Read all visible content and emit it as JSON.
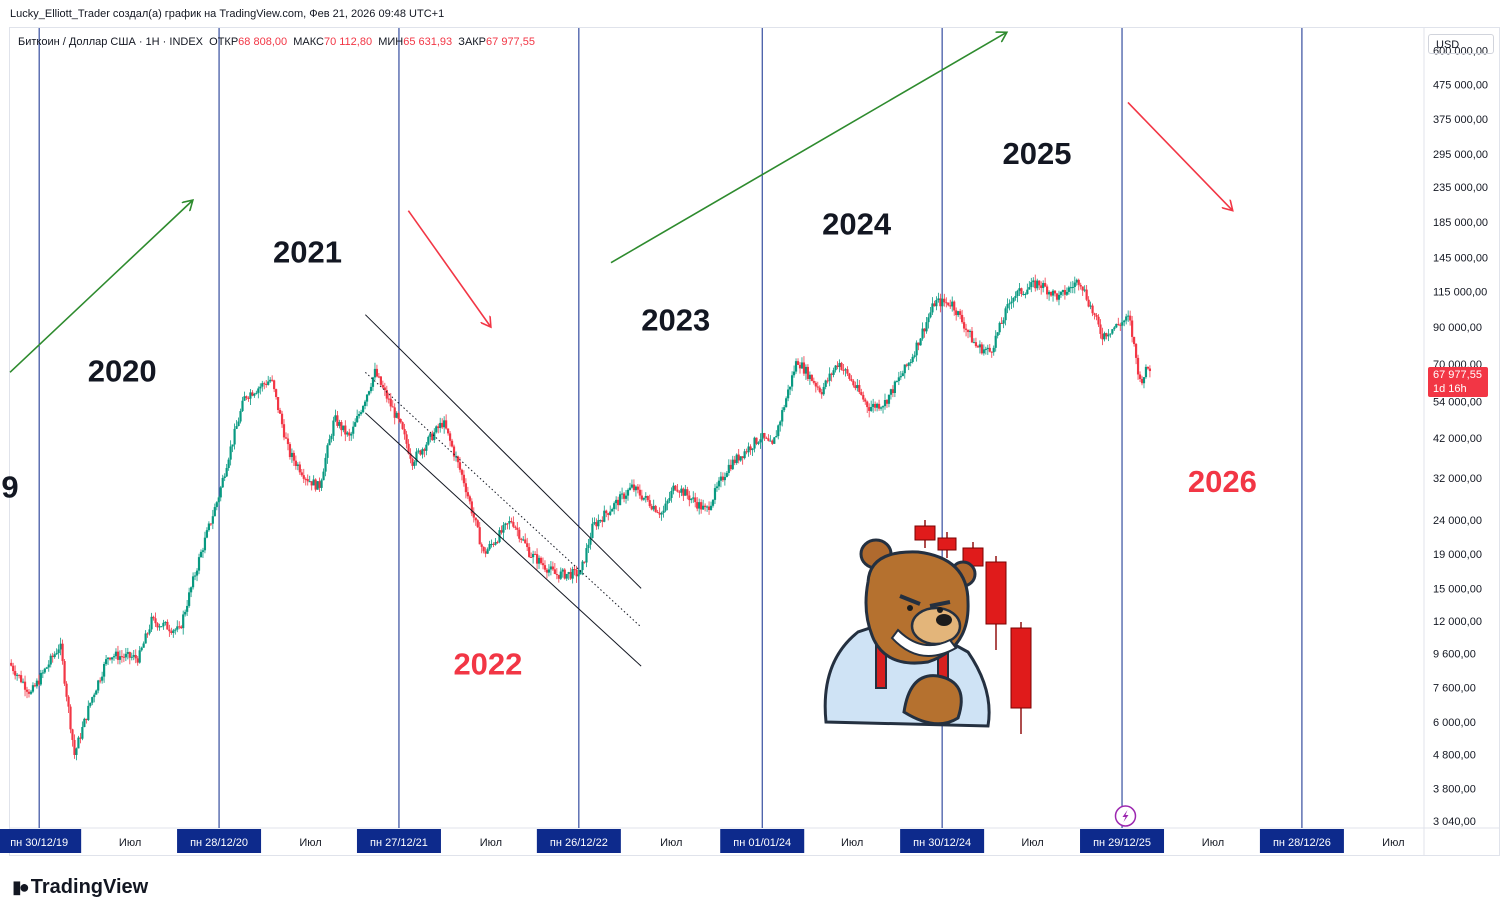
{
  "header": {
    "attribution": "Lucky_Elliott_Trader создал(а) график на TradingView.com, Фев 21, 2026 09:48 UTC+1"
  },
  "legend": {
    "symbol": "Биткоин / Доллар США · 1Н · INDEX",
    "open_label": "ОТКР",
    "open_value": "68 808,00",
    "high_label": "МАКС",
    "high_value": "70 112,80",
    "low_label": "МИН",
    "low_value": "65 631,93",
    "close_label": "ЗАКР",
    "close_value": "67 977,55"
  },
  "price_axis": {
    "currency": "USD",
    "current_price": "67 977,55",
    "countdown": "1d 16h",
    "partial_label": "70 000,00"
  },
  "footer": {
    "brand": "TradingView"
  },
  "colors": {
    "up": "#089981",
    "down": "#f23645",
    "year_line": "#0d2a8c",
    "trend_up": "#2e8b2e",
    "trend_down": "#f23645",
    "red_year": "#f23645"
  },
  "chart_data": {
    "type": "candlestick",
    "scale": "log",
    "ylim": [
      2900,
      700000
    ],
    "y_ticks": [
      {
        "value": 600000,
        "label": "600 000,00"
      },
      {
        "value": 475000,
        "label": "475 000,00"
      },
      {
        "value": 375000,
        "label": "375 000,00"
      },
      {
        "value": 295000,
        "label": "295 000,00"
      },
      {
        "value": 235000,
        "label": "235 000,00"
      },
      {
        "value": 185000,
        "label": "185 000,00"
      },
      {
        "value": 145000,
        "label": "145 000,00"
      },
      {
        "value": 115000,
        "label": "115 000,00"
      },
      {
        "value": 90000,
        "label": "90 000,00"
      },
      {
        "value": 54000,
        "label": "54 000,00"
      },
      {
        "value": 42000,
        "label": "42 000,00"
      },
      {
        "value": 32000,
        "label": "32 000,00"
      },
      {
        "value": 24000,
        "label": "24 000,00"
      },
      {
        "value": 19000,
        "label": "19 000,00"
      },
      {
        "value": 15000,
        "label": "15 000,00"
      },
      {
        "value": 12000,
        "label": "12 000,00"
      },
      {
        "value": 9600,
        "label": "9 600,00"
      },
      {
        "value": 7600,
        "label": "7 600,00"
      },
      {
        "value": 6000,
        "label": "6 000,00"
      },
      {
        "value": 4800,
        "label": "4 800,00"
      },
      {
        "value": 3800,
        "label": "3 800,00"
      },
      {
        "value": 3040,
        "label": "3 040,00"
      }
    ],
    "x_range": [
      "2019-11-01",
      "2027-09-01"
    ],
    "x_ticks": [
      {
        "date": "2019-12-30",
        "label": "пн 30/12/19",
        "boxed": true
      },
      {
        "date": "2020-07-01",
        "label": "Июл",
        "boxed": false
      },
      {
        "date": "2020-12-28",
        "label": "пн 28/12/20",
        "boxed": true
      },
      {
        "date": "2021-07-01",
        "label": "Июл",
        "boxed": false
      },
      {
        "date": "2021-12-27",
        "label": "пн 27/12/21",
        "boxed": true
      },
      {
        "date": "2022-07-01",
        "label": "Июл",
        "boxed": false
      },
      {
        "date": "2022-12-26",
        "label": "пн 26/12/22",
        "boxed": true
      },
      {
        "date": "2023-07-01",
        "label": "Июл",
        "boxed": false
      },
      {
        "date": "2024-01-01",
        "label": "пн 01/01/24",
        "boxed": true
      },
      {
        "date": "2024-07-01",
        "label": "Июл",
        "boxed": false
      },
      {
        "date": "2024-12-30",
        "label": "пн 30/12/24",
        "boxed": true
      },
      {
        "date": "2025-07-01",
        "label": "Июл",
        "boxed": false
      },
      {
        "date": "2025-12-29",
        "label": "пн 29/12/25",
        "boxed": true
      },
      {
        "date": "2026-07-01",
        "label": "Июл",
        "boxed": false
      },
      {
        "date": "2026-12-28",
        "label": "пн 28/12/26",
        "boxed": true
      },
      {
        "date": "2027-07-01",
        "label": "Июл",
        "boxed": false
      }
    ],
    "year_lines": [
      "2019-12-30",
      "2020-12-28",
      "2021-12-27",
      "2022-12-26",
      "2024-01-01",
      "2024-12-30",
      "2025-12-29",
      "2026-12-28"
    ],
    "price_path": [
      [
        "2019-11-01",
        9000
      ],
      [
        "2019-12-15",
        7300
      ],
      [
        "2020-02-12",
        10200
      ],
      [
        "2020-03-12",
        4800
      ],
      [
        "2020-04-15",
        7000
      ],
      [
        "2020-05-20",
        9500
      ],
      [
        "2020-07-20",
        9300
      ],
      [
        "2020-08-15",
        12000
      ],
      [
        "2020-10-10",
        11200
      ],
      [
        "2020-11-20",
        18500
      ],
      [
        "2020-12-31",
        29000
      ],
      [
        "2021-01-15",
        36000
      ],
      [
        "2021-02-20",
        56000
      ],
      [
        "2021-04-14",
        63000
      ],
      [
        "2021-05-20",
        38000
      ],
      [
        "2021-06-25",
        32000
      ],
      [
        "2021-07-20",
        30000
      ],
      [
        "2021-08-20",
        48000
      ],
      [
        "2021-09-20",
        42000
      ],
      [
        "2021-11-10",
        66000
      ],
      [
        "2021-12-31",
        46000
      ],
      [
        "2022-01-25",
        36000
      ],
      [
        "2022-03-28",
        47000
      ],
      [
        "2022-05-10",
        31000
      ],
      [
        "2022-06-18",
        19000
      ],
      [
        "2022-08-14",
        24000
      ],
      [
        "2022-09-20",
        19000
      ],
      [
        "2022-11-10",
        16500
      ],
      [
        "2022-12-31",
        16600
      ],
      [
        "2023-01-25",
        23000
      ],
      [
        "2023-04-14",
        30000
      ],
      [
        "2023-06-15",
        25000
      ],
      [
        "2023-07-10",
        30500
      ],
      [
        "2023-09-11",
        25500
      ],
      [
        "2023-10-25",
        34500
      ],
      [
        "2023-12-31",
        42500
      ],
      [
        "2024-01-23",
        39500
      ],
      [
        "2024-03-13",
        72000
      ],
      [
        "2024-05-01",
        58000
      ],
      [
        "2024-06-05",
        71000
      ],
      [
        "2024-08-05",
        52000
      ],
      [
        "2024-09-06",
        53500
      ],
      [
        "2024-10-29",
        72000
      ],
      [
        "2024-12-17",
        107000
      ],
      [
        "2025-01-21",
        106000
      ],
      [
        "2025-03-10",
        79000
      ],
      [
        "2025-04-08",
        76000
      ],
      [
        "2025-05-22",
        111000
      ],
      [
        "2025-07-14",
        122000
      ],
      [
        "2025-08-25",
        110000
      ],
      [
        "2025-10-06",
        125000
      ],
      [
        "2025-11-20",
        85000
      ],
      [
        "2026-01-14",
        96000
      ],
      [
        "2026-02-05",
        62000
      ],
      [
        "2026-02-21",
        67977
      ]
    ],
    "channel": {
      "upper": [
        [
          "2021-10-20",
          98000
        ],
        [
          "2023-05-01",
          15000
        ]
      ],
      "middle": [
        [
          "2021-10-20",
          66000
        ],
        [
          "2023-05-01",
          11500
        ]
      ],
      "lower": [
        [
          "2021-10-20",
          50000
        ],
        [
          "2023-05-01",
          8800
        ]
      ]
    },
    "trend_arrows": [
      {
        "direction": "up",
        "from": [
          "2019-11-01",
          66000
        ],
        "to": [
          "2020-11-05",
          215000
        ]
      },
      {
        "direction": "down",
        "from": [
          "2022-01-15",
          200000
        ],
        "to": [
          "2022-07-01",
          90000
        ]
      },
      {
        "direction": "up",
        "from": [
          "2023-03-01",
          140000
        ],
        "to": [
          "2025-05-10",
          680000
        ]
      },
      {
        "direction": "down",
        "from": [
          "2026-01-10",
          420000
        ],
        "to": [
          "2026-08-10",
          200000
        ]
      }
    ],
    "year_labels": [
      {
        "text": "9",
        "date": "2019-11-01",
        "price": 28000,
        "color": "#131722"
      },
      {
        "text": "2020",
        "date": "2020-06-15",
        "price": 62000,
        "color": "#131722"
      },
      {
        "text": "2021",
        "date": "2021-06-25",
        "price": 140000,
        "color": "#131722"
      },
      {
        "text": "2022",
        "date": "2022-06-25",
        "price": 8300,
        "color": "#f23645"
      },
      {
        "text": "2023",
        "date": "2023-07-10",
        "price": 88000,
        "color": "#131722"
      },
      {
        "text": "2024",
        "date": "2024-07-10",
        "price": 170000,
        "color": "#131722"
      },
      {
        "text": "2025",
        "date": "2025-07-10",
        "price": 275000,
        "color": "#131722"
      },
      {
        "text": "2026",
        "date": "2026-07-20",
        "price": 29000,
        "color": "#f23645"
      }
    ]
  }
}
